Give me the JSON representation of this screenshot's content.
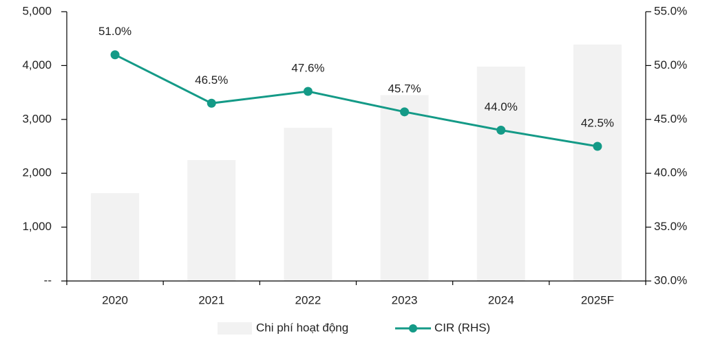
{
  "chart_data": {
    "type": "bar",
    "categories": [
      "2020",
      "2021",
      "2022",
      "2023",
      "2024",
      "2025F"
    ],
    "series": [
      {
        "name": "Chi phí hoạt động",
        "type": "bar",
        "color": "#f2f2f2",
        "values": [
          1630,
          2245,
          2845,
          3450,
          3980,
          4390
        ]
      },
      {
        "name": "CIR (RHS)",
        "type": "line",
        "axis": "y2",
        "color": "#149a87",
        "values": [
          51.0,
          46.5,
          47.6,
          45.7,
          44.0,
          42.5
        ],
        "value_labels": [
          "51.0%",
          "46.5%",
          "47.6%",
          "45.7%",
          "44.0%",
          "42.5%"
        ]
      }
    ],
    "ylim": [
      0,
      5000
    ],
    "yticks": [
      {
        "value": 0,
        "label": "--"
      },
      {
        "value": 1000,
        "label": "1,000"
      },
      {
        "value": 2000,
        "label": "2,000"
      },
      {
        "value": 3000,
        "label": "3,000"
      },
      {
        "value": 4000,
        "label": "4,000"
      },
      {
        "value": 5000,
        "label": "5,000"
      }
    ],
    "y2lim": [
      30,
      55
    ],
    "y2ticks": [
      {
        "value": 30,
        "label": "30.0%"
      },
      {
        "value": 35,
        "label": "35.0%"
      },
      {
        "value": 40,
        "label": "40.0%"
      },
      {
        "value": 45,
        "label": "45.0%"
      },
      {
        "value": 50,
        "label": "50.0%"
      },
      {
        "value": 55,
        "label": "55.0%"
      }
    ],
    "legend": "bottom"
  }
}
